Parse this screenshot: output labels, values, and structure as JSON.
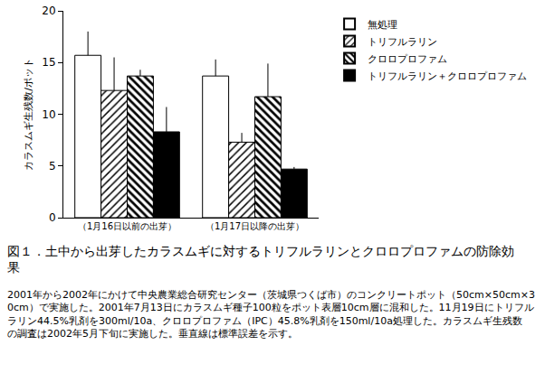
{
  "chart_data": {
    "type": "bar",
    "title": "図１．土中から出芽したカラスムギに対するトリフルラリンとクロロプロファムの防除効果",
    "annotations": [
      "2001年から2002年にかけて中央農業総合研究センター（茨城県つくば市）のコンクリートポット（50cm×50cm×30cm）で実施した。2001年7月13日にカラスムギ種子100粒をポット表層10cm層に混和した。11月19日にトリフルラリン44.5%乳剤を300ml/10a、クロロプロファム（IPC）45.8%乳剤を150ml/10a処理した。カラスムギ生残数の調査は2002年5月下旬に実施した。垂直線は標準誤差を示す。"
    ],
    "y_label": "カラスムギ生残数/ポット",
    "categories": [
      "（1月16日以前の出芽）",
      "（1月17日以降の出芽）"
    ],
    "series": [
      {
        "name": "無処理",
        "color": "#ffffff",
        "values": [
          15.7,
          13.7
        ],
        "errors": [
          2.3,
          1.6
        ]
      },
      {
        "name": "トリフルラリン",
        "color": "#ffffff",
        "values": [
          12.3,
          7.3
        ],
        "errors": [
          3.2,
          0.9
        ]
      },
      {
        "name": "クロロプロファム",
        "color": "#ffffff",
        "values": [
          13.7,
          11.7
        ],
        "errors": [
          0.6,
          3.2
        ]
      },
      {
        "name": "トリフルラリン＋クロロプロファム",
        "color": "#000000",
        "values": [
          8.3,
          4.7
        ],
        "errors": [
          2.4,
          0.2
        ]
      }
    ],
    "ylim": [
      0,
      20
    ],
    "yticks": [
      0,
      5,
      10,
      15,
      20
    ],
    "grid": false,
    "legend": "top right"
  }
}
